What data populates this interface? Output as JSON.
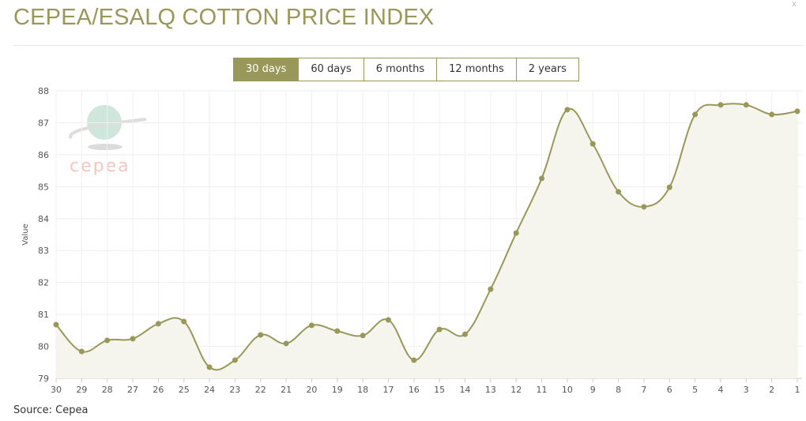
{
  "title": "CEPEA/ESALQ COTTON PRICE INDEX",
  "close": "x",
  "ranges": [
    {
      "label": "30 days",
      "active": true
    },
    {
      "label": "60 days"
    },
    {
      "label": "6 months"
    },
    {
      "label": "12 months"
    },
    {
      "label": "2 years"
    }
  ],
  "source": "Source: Cepea",
  "logo_text": "cepea",
  "colors": {
    "accent": "#99985a",
    "fill": "#f5f5ee"
  },
  "chart_data": {
    "type": "area",
    "ylabel": "Value",
    "xlabel": "",
    "ylim": [
      79,
      88
    ],
    "yticks": [
      79,
      80,
      81,
      82,
      83,
      84,
      85,
      86,
      87,
      88
    ],
    "categories": [
      "30",
      "29",
      "28",
      "27",
      "26",
      "25",
      "24",
      "23",
      "22",
      "21",
      "20",
      "19",
      "18",
      "17",
      "16",
      "15",
      "14",
      "13",
      "12",
      "11",
      "10",
      "9",
      "8",
      "7",
      "6",
      "5",
      "4",
      "3",
      "2",
      "1"
    ],
    "values": [
      80.68,
      79.84,
      80.19,
      80.24,
      80.71,
      80.78,
      79.35,
      79.57,
      80.36,
      80.09,
      80.66,
      80.48,
      80.34,
      80.83,
      79.57,
      80.53,
      80.38,
      81.79,
      83.55,
      85.26,
      87.41,
      86.34,
      84.84,
      84.37,
      84.98,
      87.26,
      87.56,
      87.56,
      87.26,
      87.36
    ],
    "grid": true
  }
}
